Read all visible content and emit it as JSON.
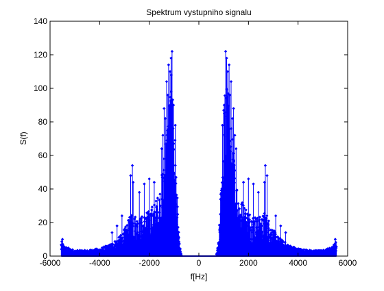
{
  "chart_data": {
    "type": "stem",
    "title": "Spektrum vystupniho signalu",
    "xlabel": "f[Hz]",
    "ylabel": "S(f)",
    "xlim": [
      -6000,
      6000
    ],
    "ylim": [
      0,
      140
    ],
    "xticks": [
      -6000,
      -4000,
      -2000,
      0,
      2000,
      4000,
      6000
    ],
    "yticks": [
      0,
      20,
      40,
      60,
      80,
      100,
      120,
      140
    ],
    "xtick_labels": [
      "-6000",
      "-4000",
      "-2000",
      "0",
      "2000",
      "4000",
      "6000"
    ],
    "ytick_labels": [
      "0",
      "20",
      "40",
      "60",
      "80",
      "100",
      "120",
      "140"
    ],
    "grid": false,
    "legend": "none",
    "series_color": "#0000ff",
    "symmetric": true,
    "envelope": [
      [
        0,
        0
      ],
      [
        400,
        0
      ],
      [
        700,
        0
      ],
      [
        800,
        8
      ],
      [
        900,
        40
      ],
      [
        1000,
        80
      ],
      [
        1100,
        95
      ],
      [
        1200,
        85
      ],
      [
        1300,
        70
      ],
      [
        1400,
        55
      ],
      [
        1500,
        42
      ],
      [
        1600,
        34
      ],
      [
        1700,
        30
      ],
      [
        1800,
        28
      ],
      [
        1900,
        26
      ],
      [
        2000,
        24
      ],
      [
        2200,
        22
      ],
      [
        2400,
        20
      ],
      [
        2600,
        22
      ],
      [
        2700,
        24
      ],
      [
        2800,
        20
      ],
      [
        3000,
        14
      ],
      [
        3200,
        10
      ],
      [
        3400,
        8
      ],
      [
        3600,
        6
      ],
      [
        4000,
        4
      ],
      [
        4500,
        3
      ],
      [
        5000,
        3
      ],
      [
        5400,
        5
      ],
      [
        5550,
        8
      ]
    ],
    "peaks": [
      [
        1080,
        122
      ],
      [
        1120,
        118
      ],
      [
        1220,
        114
      ],
      [
        1160,
        110
      ],
      [
        1300,
        104
      ],
      [
        1020,
        90
      ],
      [
        1400,
        88
      ],
      [
        950,
        78
      ],
      [
        1250,
        96
      ],
      [
        1350,
        82
      ],
      [
        1500,
        64
      ],
      [
        2680,
        54
      ],
      [
        2750,
        48
      ],
      [
        2650,
        44
      ],
      [
        1450,
        72
      ],
      [
        1800,
        44
      ],
      [
        2000,
        46
      ],
      [
        2200,
        43
      ],
      [
        2400,
        38
      ],
      [
        3100,
        24
      ],
      [
        3300,
        18
      ],
      [
        3500,
        14
      ],
      [
        5500,
        10
      ]
    ]
  }
}
